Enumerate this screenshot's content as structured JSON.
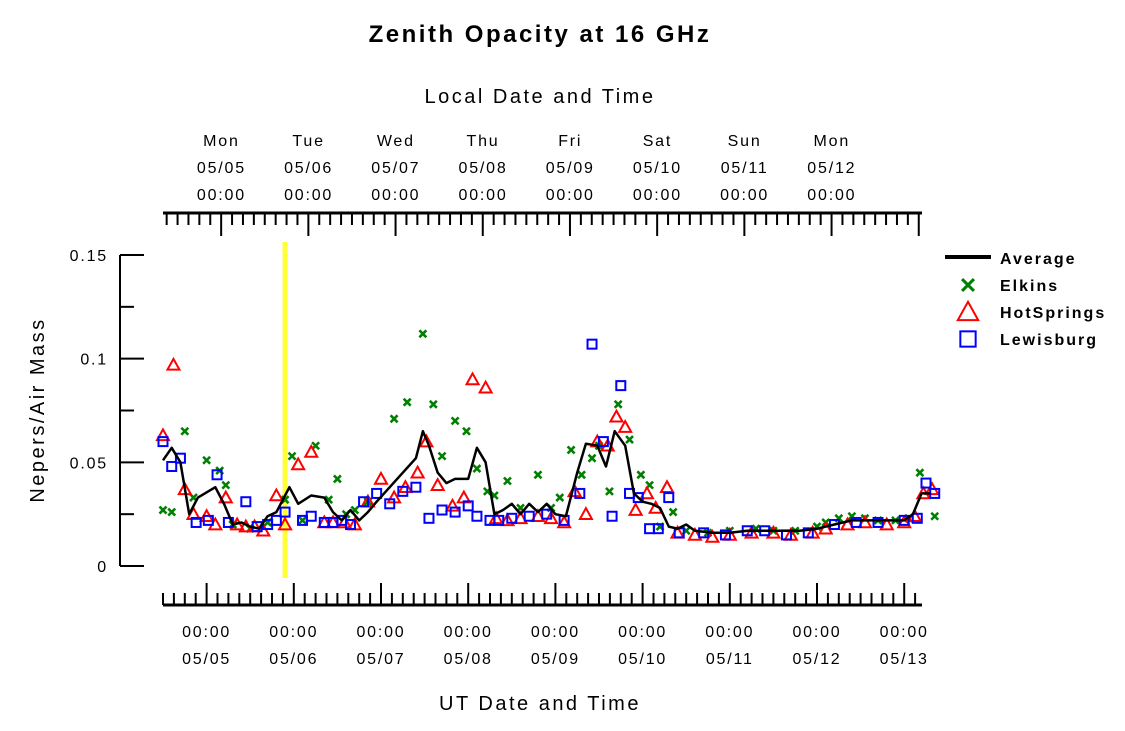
{
  "chart_data": {
    "type": "scatter",
    "title": "Zenith Opacity at 16 GHz",
    "top_xlabel": "Local Date and Time",
    "xlabel": "UT Date and Time",
    "ylabel": "Nepers/Air Mass",
    "ylim": [
      0,
      0.15
    ],
    "xlim": [
      "05/04 13:00",
      "05/13 03:00"
    ],
    "yticks": [
      {
        "value": 0,
        "label": "0"
      },
      {
        "value": 0.05,
        "label": "0.05"
      },
      {
        "value": 0.1,
        "label": "0.1"
      },
      {
        "value": 0.15,
        "label": "0.15"
      }
    ],
    "bottom_ticks": [
      {
        "day": 0.5,
        "time": "00:00",
        "date": "05/05"
      },
      {
        "day": 1.5,
        "time": "00:00",
        "date": "05/06"
      },
      {
        "day": 2.5,
        "time": "00:00",
        "date": "05/07"
      },
      {
        "day": 3.5,
        "time": "00:00",
        "date": "05/08"
      },
      {
        "day": 4.5,
        "time": "00:00",
        "date": "05/09"
      },
      {
        "day": 5.5,
        "time": "00:00",
        "date": "05/10"
      },
      {
        "day": 6.5,
        "time": "00:00",
        "date": "05/11"
      },
      {
        "day": 7.5,
        "time": "00:00",
        "date": "05/12"
      },
      {
        "day": 8.5,
        "time": "00:00",
        "date": "05/13"
      }
    ],
    "top_ticks": [
      {
        "day": 0.67,
        "weekday": "Mon",
        "date": "05/05",
        "time": "00:00"
      },
      {
        "day": 1.67,
        "weekday": "Tue",
        "date": "05/06",
        "time": "00:00"
      },
      {
        "day": 2.67,
        "weekday": "Wed",
        "date": "05/07",
        "time": "00:00"
      },
      {
        "day": 3.67,
        "weekday": "Thu",
        "date": "05/08",
        "time": "00:00"
      },
      {
        "day": 4.67,
        "weekday": "Fri",
        "date": "05/09",
        "time": "00:00"
      },
      {
        "day": 5.67,
        "weekday": "Sat",
        "date": "05/10",
        "time": "00:00"
      },
      {
        "day": 6.67,
        "weekday": "Sun",
        "date": "05/11",
        "time": "00:00"
      },
      {
        "day": 7.67,
        "weekday": "Mon",
        "date": "05/12",
        "time": "00:00"
      }
    ],
    "marker_line": {
      "day": 1.4,
      "color": "#ffff33"
    },
    "legend_position": "top-right",
    "series": [
      {
        "name": "Average",
        "style": "line",
        "color": "#000000",
        "points": [
          [
            0.0,
            0.051
          ],
          [
            0.1,
            0.057
          ],
          [
            0.2,
            0.05
          ],
          [
            0.3,
            0.025
          ],
          [
            0.4,
            0.033
          ],
          [
            0.6,
            0.038
          ],
          [
            0.7,
            0.03
          ],
          [
            0.8,
            0.02
          ],
          [
            0.9,
            0.021
          ],
          [
            1.0,
            0.019
          ],
          [
            1.1,
            0.018
          ],
          [
            1.2,
            0.024
          ],
          [
            1.3,
            0.026
          ],
          [
            1.45,
            0.038
          ],
          [
            1.55,
            0.03
          ],
          [
            1.7,
            0.034
          ],
          [
            1.85,
            0.033
          ],
          [
            1.95,
            0.026
          ],
          [
            2.05,
            0.022
          ],
          [
            2.15,
            0.027
          ],
          [
            2.25,
            0.022
          ],
          [
            2.35,
            0.026
          ],
          [
            2.45,
            0.031
          ],
          [
            2.6,
            0.038
          ],
          [
            2.75,
            0.045
          ],
          [
            2.9,
            0.052
          ],
          [
            2.98,
            0.065
          ],
          [
            3.05,
            0.058
          ],
          [
            3.15,
            0.045
          ],
          [
            3.25,
            0.04
          ],
          [
            3.35,
            0.042
          ],
          [
            3.5,
            0.042
          ],
          [
            3.6,
            0.057
          ],
          [
            3.7,
            0.05
          ],
          [
            3.8,
            0.025
          ],
          [
            3.9,
            0.027
          ],
          [
            4.0,
            0.03
          ],
          [
            4.1,
            0.025
          ],
          [
            4.2,
            0.03
          ],
          [
            4.3,
            0.026
          ],
          [
            4.4,
            0.03
          ],
          [
            4.5,
            0.025
          ],
          [
            4.62,
            0.024
          ],
          [
            4.75,
            0.045
          ],
          [
            4.85,
            0.059
          ],
          [
            4.98,
            0.058
          ],
          [
            5.08,
            0.048
          ],
          [
            5.18,
            0.065
          ],
          [
            5.3,
            0.058
          ],
          [
            5.4,
            0.035
          ],
          [
            5.5,
            0.031
          ],
          [
            5.6,
            0.03
          ],
          [
            5.7,
            0.028
          ],
          [
            5.8,
            0.019
          ],
          [
            5.9,
            0.018
          ],
          [
            6.0,
            0.02
          ],
          [
            6.1,
            0.017
          ],
          [
            6.3,
            0.016
          ],
          [
            6.5,
            0.016
          ],
          [
            6.7,
            0.017
          ],
          [
            6.9,
            0.017
          ],
          [
            7.1,
            0.017
          ],
          [
            7.3,
            0.017
          ],
          [
            7.5,
            0.018
          ],
          [
            7.7,
            0.02
          ],
          [
            7.9,
            0.022
          ],
          [
            8.1,
            0.022
          ],
          [
            8.3,
            0.022
          ],
          [
            8.5,
            0.022
          ],
          [
            8.6,
            0.025
          ],
          [
            8.7,
            0.035
          ],
          [
            8.8,
            0.035
          ]
        ]
      },
      {
        "name": "Elkins",
        "style": "x",
        "color": "#008000",
        "points": [
          [
            0.0,
            0.027
          ],
          [
            0.1,
            0.026
          ],
          [
            0.25,
            0.065
          ],
          [
            0.35,
            0.033
          ],
          [
            0.5,
            0.051
          ],
          [
            0.65,
            0.046
          ],
          [
            0.72,
            0.039
          ],
          [
            0.8,
            0.02
          ],
          [
            1.0,
            0.018
          ],
          [
            1.2,
            0.021
          ],
          [
            1.4,
            0.032
          ],
          [
            1.48,
            0.053
          ],
          [
            1.6,
            0.022
          ],
          [
            1.75,
            0.058
          ],
          [
            1.9,
            0.032
          ],
          [
            2.0,
            0.042
          ],
          [
            2.1,
            0.025
          ],
          [
            2.2,
            0.027
          ],
          [
            2.35,
            0.031
          ],
          [
            2.65,
            0.071
          ],
          [
            2.8,
            0.079
          ],
          [
            2.98,
            0.112
          ],
          [
            3.1,
            0.078
          ],
          [
            3.2,
            0.053
          ],
          [
            3.35,
            0.07
          ],
          [
            3.48,
            0.065
          ],
          [
            3.6,
            0.047
          ],
          [
            3.72,
            0.036
          ],
          [
            3.8,
            0.034
          ],
          [
            3.95,
            0.041
          ],
          [
            4.1,
            0.028
          ],
          [
            4.3,
            0.044
          ],
          [
            4.45,
            0.028
          ],
          [
            4.55,
            0.033
          ],
          [
            4.68,
            0.056
          ],
          [
            4.8,
            0.044
          ],
          [
            4.92,
            0.052
          ],
          [
            5.0,
            0.058
          ],
          [
            5.12,
            0.036
          ],
          [
            5.22,
            0.078
          ],
          [
            5.35,
            0.061
          ],
          [
            5.48,
            0.044
          ],
          [
            5.58,
            0.039
          ],
          [
            5.7,
            0.019
          ],
          [
            5.85,
            0.026
          ],
          [
            6.0,
            0.017
          ],
          [
            6.25,
            0.016
          ],
          [
            6.5,
            0.017
          ],
          [
            6.8,
            0.018
          ],
          [
            7.0,
            0.017
          ],
          [
            7.25,
            0.017
          ],
          [
            7.5,
            0.019
          ],
          [
            7.6,
            0.021
          ],
          [
            7.75,
            0.023
          ],
          [
            7.9,
            0.024
          ],
          [
            8.05,
            0.023
          ],
          [
            8.2,
            0.022
          ],
          [
            8.4,
            0.022
          ],
          [
            8.55,
            0.023
          ],
          [
            8.68,
            0.045
          ],
          [
            8.85,
            0.024
          ]
        ]
      },
      {
        "name": "HotSprings",
        "style": "triangle",
        "color": "#ff0000",
        "points": [
          [
            0.0,
            0.063
          ],
          [
            0.12,
            0.097
          ],
          [
            0.25,
            0.037
          ],
          [
            0.35,
            0.025
          ],
          [
            0.5,
            0.024
          ],
          [
            0.6,
            0.02
          ],
          [
            0.72,
            0.033
          ],
          [
            0.85,
            0.02
          ],
          [
            0.95,
            0.019
          ],
          [
            1.05,
            0.019
          ],
          [
            1.15,
            0.017
          ],
          [
            1.3,
            0.034
          ],
          [
            1.4,
            0.02
          ],
          [
            1.55,
            0.049
          ],
          [
            1.7,
            0.055
          ],
          [
            1.85,
            0.021
          ],
          [
            1.95,
            0.021
          ],
          [
            2.08,
            0.021
          ],
          [
            2.2,
            0.02
          ],
          [
            2.35,
            0.031
          ],
          [
            2.5,
            0.042
          ],
          [
            2.65,
            0.033
          ],
          [
            2.78,
            0.038
          ],
          [
            2.92,
            0.045
          ],
          [
            3.02,
            0.06
          ],
          [
            3.15,
            0.039
          ],
          [
            3.32,
            0.029
          ],
          [
            3.45,
            0.033
          ],
          [
            3.55,
            0.09
          ],
          [
            3.7,
            0.086
          ],
          [
            3.82,
            0.023
          ],
          [
            3.95,
            0.022
          ],
          [
            4.1,
            0.023
          ],
          [
            4.3,
            0.024
          ],
          [
            4.45,
            0.023
          ],
          [
            4.6,
            0.021
          ],
          [
            4.72,
            0.036
          ],
          [
            4.85,
            0.025
          ],
          [
            4.98,
            0.06
          ],
          [
            5.1,
            0.058
          ],
          [
            5.2,
            0.072
          ],
          [
            5.3,
            0.067
          ],
          [
            5.42,
            0.027
          ],
          [
            5.55,
            0.035
          ],
          [
            5.65,
            0.028
          ],
          [
            5.78,
            0.038
          ],
          [
            5.9,
            0.016
          ],
          [
            6.1,
            0.015
          ],
          [
            6.3,
            0.014
          ],
          [
            6.5,
            0.015
          ],
          [
            6.75,
            0.016
          ],
          [
            7.0,
            0.016
          ],
          [
            7.2,
            0.015
          ],
          [
            7.45,
            0.016
          ],
          [
            7.6,
            0.018
          ],
          [
            7.85,
            0.02
          ],
          [
            8.05,
            0.021
          ],
          [
            8.3,
            0.02
          ],
          [
            8.5,
            0.021
          ],
          [
            8.62,
            0.024
          ],
          [
            8.72,
            0.035
          ],
          [
            8.82,
            0.037
          ]
        ]
      },
      {
        "name": "Lewisburg",
        "style": "square",
        "color": "#0000ff",
        "points": [
          [
            0.0,
            0.06
          ],
          [
            0.1,
            0.048
          ],
          [
            0.2,
            0.052
          ],
          [
            0.38,
            0.021
          ],
          [
            0.52,
            0.022
          ],
          [
            0.62,
            0.044
          ],
          [
            0.75,
            0.021
          ],
          [
            0.95,
            0.031
          ],
          [
            1.08,
            0.019
          ],
          [
            1.2,
            0.02
          ],
          [
            1.3,
            0.022
          ],
          [
            1.4,
            0.026
          ],
          [
            1.6,
            0.022
          ],
          [
            1.7,
            0.024
          ],
          [
            1.85,
            0.021
          ],
          [
            1.95,
            0.021
          ],
          [
            2.05,
            0.022
          ],
          [
            2.15,
            0.02
          ],
          [
            2.3,
            0.031
          ],
          [
            2.45,
            0.035
          ],
          [
            2.6,
            0.03
          ],
          [
            2.75,
            0.036
          ],
          [
            2.9,
            0.038
          ],
          [
            3.05,
            0.023
          ],
          [
            3.2,
            0.027
          ],
          [
            3.35,
            0.026
          ],
          [
            3.5,
            0.029
          ],
          [
            3.6,
            0.024
          ],
          [
            3.75,
            0.022
          ],
          [
            3.85,
            0.022
          ],
          [
            4.0,
            0.023
          ],
          [
            4.2,
            0.024
          ],
          [
            4.4,
            0.025
          ],
          [
            4.6,
            0.022
          ],
          [
            4.78,
            0.035
          ],
          [
            4.92,
            0.107
          ],
          [
            5.05,
            0.06
          ],
          [
            5.15,
            0.024
          ],
          [
            5.25,
            0.087
          ],
          [
            5.35,
            0.035
          ],
          [
            5.45,
            0.033
          ],
          [
            5.58,
            0.018
          ],
          [
            5.68,
            0.018
          ],
          [
            5.8,
            0.033
          ],
          [
            5.92,
            0.016
          ],
          [
            6.2,
            0.016
          ],
          [
            6.45,
            0.015
          ],
          [
            6.7,
            0.017
          ],
          [
            6.9,
            0.017
          ],
          [
            7.15,
            0.015
          ],
          [
            7.4,
            0.016
          ],
          [
            7.7,
            0.02
          ],
          [
            7.95,
            0.021
          ],
          [
            8.2,
            0.021
          ],
          [
            8.5,
            0.022
          ],
          [
            8.65,
            0.023
          ],
          [
            8.75,
            0.04
          ],
          [
            8.85,
            0.035
          ]
        ]
      }
    ]
  }
}
